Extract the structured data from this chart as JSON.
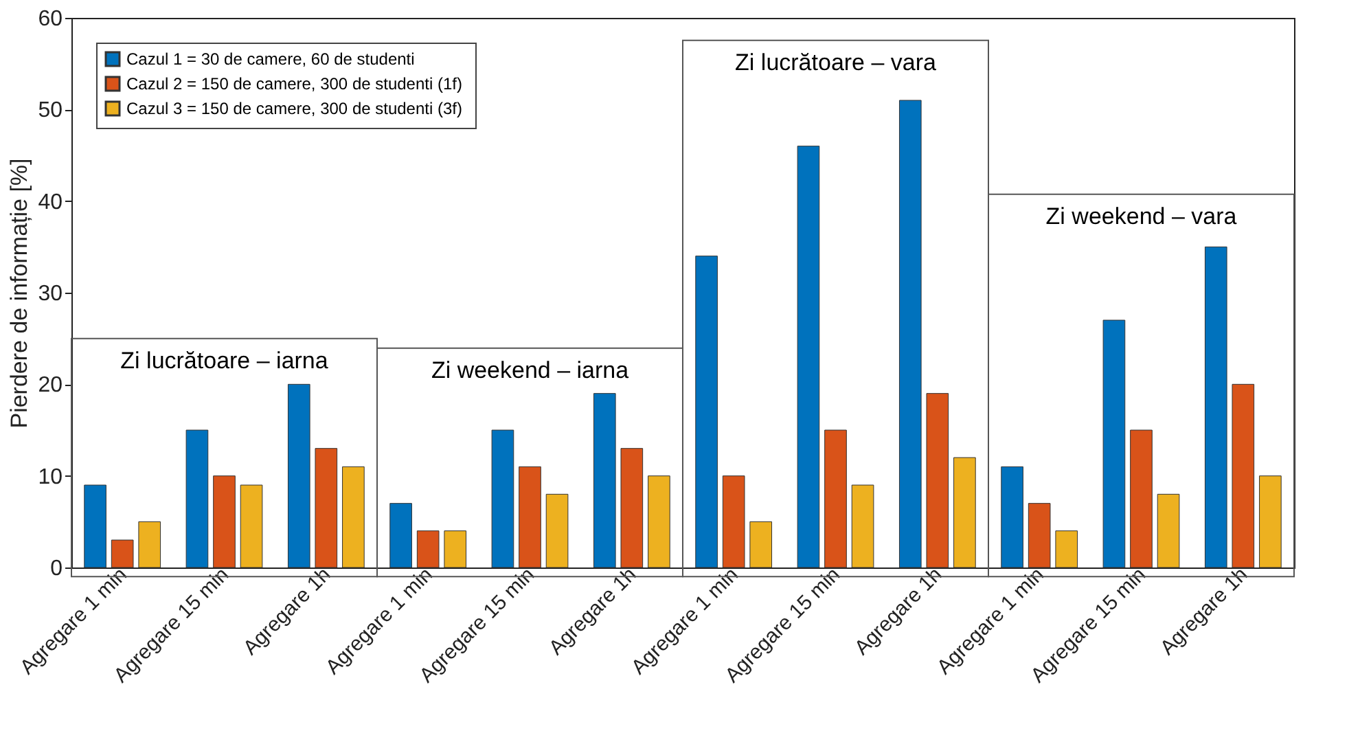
{
  "chart_data": {
    "type": "bar",
    "ylabel": "Pierdere de informație [%]",
    "categories": [
      "Agregare 1 min",
      "Agregare 15 min",
      "Agregare 1h",
      "Agregare 1 min",
      "Agregare 15 min",
      "Agregare 1h",
      "Agregare 1 min",
      "Agregare 15 min",
      "Agregare 1h",
      "Agregare 1 min",
      "Agregare 15 min",
      "Agregare 1h"
    ],
    "series": [
      {
        "name": "Cazul 1 = 30 de camere, 60 de studenti",
        "color": "#0072bd",
        "values": [
          9,
          15,
          20,
          7,
          15,
          19,
          34,
          46,
          51,
          11,
          27,
          35
        ]
      },
      {
        "name": "Cazul 2 = 150  de camere, 300 de studenti (1f)",
        "color": "#d95319",
        "values": [
          3,
          10,
          13,
          4,
          11,
          13,
          10,
          15,
          19,
          7,
          15,
          20
        ]
      },
      {
        "name": "Cazul 3 = 150 de camere, 300 de studenti (3f)",
        "color": "#edb120",
        "values": [
          5,
          9,
          11,
          4,
          8,
          10,
          5,
          9,
          12,
          4,
          8,
          10
        ]
      }
    ],
    "annotations": [
      "Zi lucrătoare – iarna",
      "Zi weekend – iarna",
      "Zi lucrătoare – vara",
      "Zi weekend – vara"
    ],
    "ylim": [
      0,
      60
    ],
    "yticks": [
      0,
      10,
      20,
      30,
      40,
      50,
      60
    ],
    "grid": false,
    "legend": "top left"
  }
}
